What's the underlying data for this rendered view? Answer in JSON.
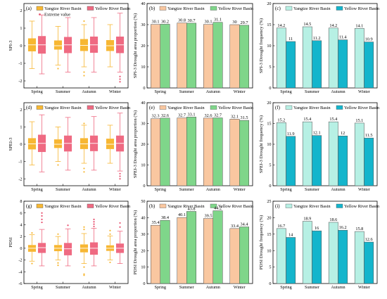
{
  "colors": {
    "box_yangtze": "#f7b733",
    "box_yellow": "#ef6a82",
    "median_yangtze": "#ffffff",
    "outlier_yangtze": "#f7b733",
    "outlier_yellow": "#e8506e",
    "bar_b_yangtze": "#f9c7a0",
    "bar_b_yellow": "#7fd68a",
    "bar_c_yangtze": "#b7f0e4",
    "bar_c_yellow": "#14b5cc"
  },
  "legend": {
    "yangtze": "Yangtze River Basin",
    "yellow": "Yellow River Basin",
    "extreme": "Extreme value"
  },
  "chart_data": [
    {
      "id": "a",
      "label": "(a)",
      "type": "box",
      "ylabel": "SPI-3",
      "ylim": [
        -2.4,
        2.4
      ],
      "yticks": [
        -2,
        -1,
        0,
        1,
        2
      ],
      "categories": [
        "Spring",
        "Summer",
        "Autumn",
        "Winter"
      ],
      "show_extreme_legend": true,
      "series": [
        {
          "name": "Yangtze River Basin",
          "boxes": [
            {
              "wl": -1.3,
              "q1": -0.32,
              "med": 0.05,
              "q3": 0.42,
              "wh": 1.4,
              "out": []
            },
            {
              "wl": -1.1,
              "q1": -0.22,
              "med": 0.0,
              "q3": 0.3,
              "wh": 1.1,
              "out": [
                -1.3
              ]
            },
            {
              "wl": -1.2,
              "q1": -0.3,
              "med": 0.02,
              "q3": 0.38,
              "wh": 1.2,
              "out": [
                1.4,
                -1.5,
                -1.7
              ]
            },
            {
              "wl": -1.2,
              "q1": -0.3,
              "med": 0.0,
              "q3": 0.32,
              "wh": 1.2,
              "out": []
            }
          ]
        },
        {
          "name": "Yellow River Basin",
          "boxes": [
            {
              "wl": -1.6,
              "q1": -0.45,
              "med": 0.05,
              "q3": 0.55,
              "wh": 1.75,
              "out": []
            },
            {
              "wl": -1.5,
              "q1": -0.42,
              "med": 0.05,
              "q3": 0.5,
              "wh": 1.6,
              "out": []
            },
            {
              "wl": -1.5,
              "q1": -0.4,
              "med": 0.05,
              "q3": 0.52,
              "wh": 1.6,
              "out": []
            },
            {
              "wl": -1.5,
              "q1": -0.42,
              "med": 0.05,
              "q3": 0.52,
              "wh": 1.85,
              "out": [
                -1.75,
                -1.9,
                -2.05
              ]
            }
          ]
        }
      ]
    },
    {
      "id": "b",
      "label": "(b)",
      "type": "bar",
      "ylabel": "SPI-3 Drought area proportion (%)",
      "ylim": [
        0,
        40
      ],
      "yticks": [
        0,
        10,
        20,
        30,
        40
      ],
      "categories": [
        "Spring",
        "Summer",
        "Autumn",
        "Winter"
      ],
      "palette": "b",
      "series": [
        {
          "name": "Yangtze River Basin",
          "values": [
            30.1,
            30.8,
            30.1,
            30
          ],
          "labels": [
            "30.1",
            "30.8",
            "30.1",
            "30"
          ]
        },
        {
          "name": "Yellow River Basin",
          "values": [
            30.2,
            30.7,
            31.1,
            29.7
          ],
          "labels": [
            "30.2",
            "30.7",
            "31.1",
            "29.7"
          ]
        }
      ]
    },
    {
      "id": "c",
      "label": "(c)",
      "type": "bar",
      "ylabel": "SPI-3 Drought frequency (%)",
      "ylim": [
        0,
        20
      ],
      "yticks": [
        0,
        5,
        10,
        15,
        20
      ],
      "categories": [
        "Spring",
        "Summer",
        "Autumn",
        "Winter"
      ],
      "palette": "c",
      "series": [
        {
          "name": "Yangtze River Basin",
          "values": [
            14.2,
            14.5,
            14.2,
            14.1
          ],
          "labels": [
            "14.2",
            "14.5",
            "14.2",
            "14.1"
          ]
        },
        {
          "name": "Yellow River Basin",
          "values": [
            11,
            11.2,
            11.4,
            10.9
          ],
          "labels": [
            "11",
            "11.2",
            "11.4",
            "10.9"
          ]
        }
      ]
    },
    {
      "id": "d",
      "label": "(d)",
      "type": "box",
      "ylabel": "SPEI-3",
      "ylim": [
        -2.4,
        2.4
      ],
      "yticks": [
        -2,
        -1,
        0,
        1,
        2
      ],
      "categories": [
        "Spring",
        "Summer",
        "Autumn",
        "Winter"
      ],
      "show_extreme_legend": false,
      "series": [
        {
          "name": "Yangtze River Basin",
          "boxes": [
            {
              "wl": -1.2,
              "q1": -0.3,
              "med": 0.02,
              "q3": 0.35,
              "wh": 1.3,
              "out": []
            },
            {
              "wl": -1.0,
              "q1": -0.22,
              "med": 0.0,
              "q3": 0.28,
              "wh": 1.0,
              "out": [
                -1.2
              ]
            },
            {
              "wl": -1.1,
              "q1": -0.28,
              "med": 0.02,
              "q3": 0.35,
              "wh": 1.1,
              "out": [
                1.2,
                -1.4,
                -1.6
              ]
            },
            {
              "wl": -1.1,
              "q1": -0.28,
              "med": 0.0,
              "q3": 0.32,
              "wh": 1.1,
              "out": []
            }
          ]
        },
        {
          "name": "Yellow River Basin",
          "boxes": [
            {
              "wl": -1.6,
              "q1": -0.45,
              "med": 0.05,
              "q3": 0.55,
              "wh": 1.7,
              "out": []
            },
            {
              "wl": -1.5,
              "q1": -0.42,
              "med": 0.05,
              "q3": 0.5,
              "wh": 1.55,
              "out": []
            },
            {
              "wl": -1.5,
              "q1": -0.4,
              "med": 0.05,
              "q3": 0.5,
              "wh": 1.6,
              "out": []
            },
            {
              "wl": -1.55,
              "q1": -0.42,
              "med": 0.05,
              "q3": 0.5,
              "wh": 1.8,
              "out": [
                -1.7,
                -1.85,
                -2.0
              ]
            }
          ]
        }
      ]
    },
    {
      "id": "e",
      "label": "(e)",
      "type": "bar",
      "ylabel": "SPEI-3 Drought area proportion (%)",
      "ylim": [
        0,
        40
      ],
      "yticks": [
        0,
        10,
        20,
        30,
        40
      ],
      "categories": [
        "Spring",
        "Summer",
        "Autumn",
        "Winter"
      ],
      "palette": "b",
      "series": [
        {
          "name": "Yangtze River Basin",
          "values": [
            32.3,
            32.7,
            32.6,
            32.1
          ],
          "labels": [
            "32.3",
            "32.7",
            "32.6",
            "32.1"
          ]
        },
        {
          "name": "Yellow River Basin",
          "values": [
            32.6,
            33.1,
            32.7,
            31.5
          ],
          "labels": [
            "32.6",
            "33.1",
            "32.7",
            "31.5"
          ]
        }
      ]
    },
    {
      "id": "f",
      "label": "(f)",
      "type": "bar",
      "ylabel": "SPEI-3 Drought frequency (%)",
      "ylim": [
        0,
        20
      ],
      "yticks": [
        0,
        5,
        10,
        15,
        20
      ],
      "categories": [
        "Spring",
        "Summer",
        "Autumn",
        "Winter"
      ],
      "palette": "c",
      "series": [
        {
          "name": "Yangtze River Basin",
          "values": [
            15.2,
            15.4,
            15.4,
            15.1
          ],
          "labels": [
            "15.2",
            "15.4",
            "15.4",
            "15.1"
          ]
        },
        {
          "name": "Yellow River Basin",
          "values": [
            11.9,
            12.1,
            12,
            11.5
          ],
          "labels": [
            "11.9",
            "12.1",
            "12",
            "11.5"
          ]
        }
      ]
    },
    {
      "id": "g",
      "label": "(g)",
      "type": "box",
      "ylabel": "PDSI",
      "ylim": [
        -6,
        8
      ],
      "yticks": [
        -6,
        -4,
        -2,
        0,
        2,
        4,
        6,
        8
      ],
      "categories": [
        "Spring",
        "Summer",
        "Autumn",
        "Winter"
      ],
      "show_extreme_legend": false,
      "series": [
        {
          "name": "Yangtze River Basin",
          "boxes": [
            {
              "wl": -2.2,
              "q1": -0.6,
              "med": 0.0,
              "q3": 0.55,
              "wh": 2.3,
              "out": [
                2.6,
                -2.6
              ]
            },
            {
              "wl": -2.0,
              "q1": -0.5,
              "med": 0.0,
              "q3": 0.55,
              "wh": 2.0,
              "out": [
                2.4,
                -2.5,
                -2.9
              ]
            },
            {
              "wl": -2.6,
              "q1": -0.7,
              "med": 0.0,
              "q3": 0.65,
              "wh": 2.5,
              "out": [
                3.2,
                3.6,
                -3.2,
                -4.4,
                -4.6
              ]
            },
            {
              "wl": -2.0,
              "q1": -0.45,
              "med": 0.0,
              "q3": 0.5,
              "wh": 2.1,
              "out": [
                2.4,
                3.0,
                -2.4
              ]
            }
          ]
        },
        {
          "name": "Yellow River Basin",
          "boxes": [
            {
              "wl": -3.0,
              "q1": -0.8,
              "med": 0.1,
              "q3": 0.9,
              "wh": 3.2,
              "out": [
                4.4,
                4.9,
                5.5,
                6.0
              ]
            },
            {
              "wl": -3.0,
              "q1": -1.2,
              "med": -0.1,
              "q3": 0.9,
              "wh": 3.3,
              "out": [
                3.9
              ]
            },
            {
              "wl": -3.0,
              "q1": -1.1,
              "med": 0.0,
              "q3": 1.0,
              "wh": 3.4,
              "out": [
                3.7,
                4.1,
                4.5,
                4.9
              ]
            },
            {
              "wl": -2.6,
              "q1": -0.8,
              "med": 0.0,
              "q3": 0.8,
              "wh": 2.9,
              "out": [
                3.6,
                4.3
              ]
            }
          ]
        }
      ]
    },
    {
      "id": "h",
      "label": "(h)",
      "type": "bar",
      "ylabel": "PDSI Drought area proportion (%)",
      "ylim": [
        0,
        50
      ],
      "yticks": [
        0,
        10,
        20,
        30,
        40,
        50
      ],
      "categories": [
        "Spring",
        "Summer",
        "Autumn",
        "Winter"
      ],
      "palette": "b",
      "series": [
        {
          "name": "Yangtze River Basin",
          "values": [
            35.4,
            40.1,
            39.5,
            33.4
          ],
          "labels": [
            "35.4",
            "40.1",
            "39.5",
            "33.4"
          ]
        },
        {
          "name": "Yellow River Basin",
          "values": [
            38.4,
            43.8,
            44.2,
            34.4
          ],
          "labels": [
            "38.4",
            "43.8",
            "44.2",
            "34.4"
          ]
        }
      ]
    },
    {
      "id": "i",
      "label": "(i)",
      "type": "bar",
      "ylabel": "PDSI Drought frequency (%)",
      "ylim": [
        0,
        25
      ],
      "yticks": [
        0,
        5,
        10,
        15,
        20,
        25
      ],
      "categories": [
        "Spring",
        "Summer",
        "Autumn",
        "Winter"
      ],
      "palette": "c",
      "series": [
        {
          "name": "Yangtze River Basin",
          "values": [
            16.7,
            18.9,
            18.6,
            15.8
          ],
          "labels": [
            "16.7",
            "18.9",
            "18.6",
            "15.8"
          ]
        },
        {
          "name": "Yellow River Basin",
          "values": [
            14,
            16,
            16.2,
            12.6
          ],
          "labels": [
            "14",
            "16",
            "16.2",
            "12.6"
          ]
        }
      ]
    }
  ]
}
